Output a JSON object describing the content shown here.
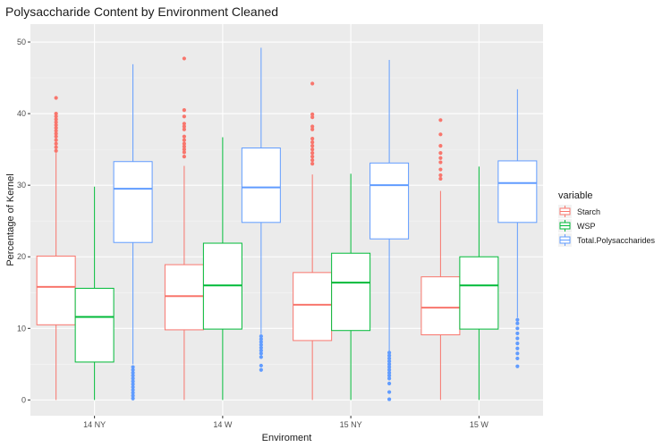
{
  "chart_data": {
    "type": "boxplot",
    "title": "Polysaccharide Content by Environment Cleaned",
    "xlabel": "Enviroment",
    "ylabel": "Percentage of Kernel",
    "categories": [
      "14 NY",
      "14 W",
      "15 NY",
      "15 W"
    ],
    "ylim": [
      -2.2,
      52.5
    ],
    "yticks": [
      0,
      10,
      20,
      30,
      40,
      50
    ],
    "grid": true,
    "legend": {
      "title": "variable",
      "position": "right"
    },
    "series": [
      {
        "name": "Starch",
        "color": "#F8766D",
        "boxes": [
          {
            "whisker_low": 0,
            "q1": 10.5,
            "median": 15.8,
            "q3": 20.1,
            "whisker_high": 34.5,
            "outliers": [
              34.8,
              35.3,
              35.8,
              36.3,
              36.8,
              37.2,
              37.6,
              38.0,
              38.4,
              38.8,
              39.2,
              39.6,
              40.0,
              42.2
            ]
          },
          {
            "whisker_low": 0,
            "q1": 9.8,
            "median": 14.5,
            "q3": 18.9,
            "whisker_high": 32.7,
            "outliers": [
              34.0,
              34.6,
              35.0,
              35.4,
              35.8,
              36.3,
              36.8,
              37.8,
              38.2,
              38.6,
              39.6,
              40.5,
              47.7
            ]
          },
          {
            "whisker_low": 0,
            "q1": 8.3,
            "median": 13.3,
            "q3": 17.8,
            "whisker_high": 31.5,
            "outliers": [
              33.0,
              33.5,
              34.0,
              34.5,
              35.0,
              35.5,
              36.0,
              36.5,
              37.8,
              38.2,
              39.5,
              39.9,
              44.2
            ]
          },
          {
            "whisker_low": 0,
            "q1": 9.1,
            "median": 12.9,
            "q3": 17.2,
            "whisker_high": 29.2,
            "outliers": [
              30.9,
              31.4,
              32.2,
              33.2,
              33.8,
              34.5,
              35.5,
              37.1,
              39.1
            ]
          }
        ]
      },
      {
        "name": "WSP",
        "color": "#00BA38",
        "boxes": [
          {
            "whisker_low": 0,
            "q1": 5.3,
            "median": 11.6,
            "q3": 15.6,
            "whisker_high": 29.8,
            "outliers": []
          },
          {
            "whisker_low": 0,
            "q1": 9.9,
            "median": 16.0,
            "q3": 21.9,
            "whisker_high": 36.7,
            "outliers": []
          },
          {
            "whisker_low": 0,
            "q1": 9.7,
            "median": 16.4,
            "q3": 20.5,
            "whisker_high": 31.6,
            "outliers": []
          },
          {
            "whisker_low": 0,
            "q1": 9.9,
            "median": 16.0,
            "q3": 20.0,
            "whisker_high": 32.6,
            "outliers": []
          }
        ]
      },
      {
        "name": "Total.Polysaccharides",
        "color": "#619CFF",
        "boxes": [
          {
            "whisker_low": 5.0,
            "q1": 22.0,
            "median": 29.5,
            "q3": 33.3,
            "whisker_high": 46.9,
            "outliers": [
              0.2,
              0.6,
              1.0,
              1.4,
              1.8,
              2.2,
              2.6,
              3.0,
              3.4,
              3.8,
              4.2,
              4.6
            ]
          },
          {
            "whisker_low": 9.2,
            "q1": 24.8,
            "median": 29.7,
            "q3": 35.2,
            "whisker_high": 49.2,
            "outliers": [
              4.2,
              4.8,
              6.0,
              6.5,
              6.9,
              7.3,
              7.7,
              8.1,
              8.5,
              8.9
            ]
          },
          {
            "whisker_low": 6.8,
            "q1": 22.5,
            "median": 30.0,
            "q3": 33.1,
            "whisker_high": 47.5,
            "outliers": [
              0.1,
              1.1,
              2.3,
              3.0,
              3.4,
              3.8,
              4.2,
              4.6,
              5.0,
              5.4,
              5.8,
              6.2,
              6.6
            ]
          },
          {
            "whisker_low": 11.5,
            "q1": 24.8,
            "median": 30.3,
            "q3": 33.4,
            "whisker_high": 43.4,
            "outliers": [
              4.7,
              5.8,
              6.5,
              7.2,
              7.9,
              8.6,
              9.3,
              10.0,
              10.7,
              11.2
            ]
          }
        ]
      }
    ]
  }
}
